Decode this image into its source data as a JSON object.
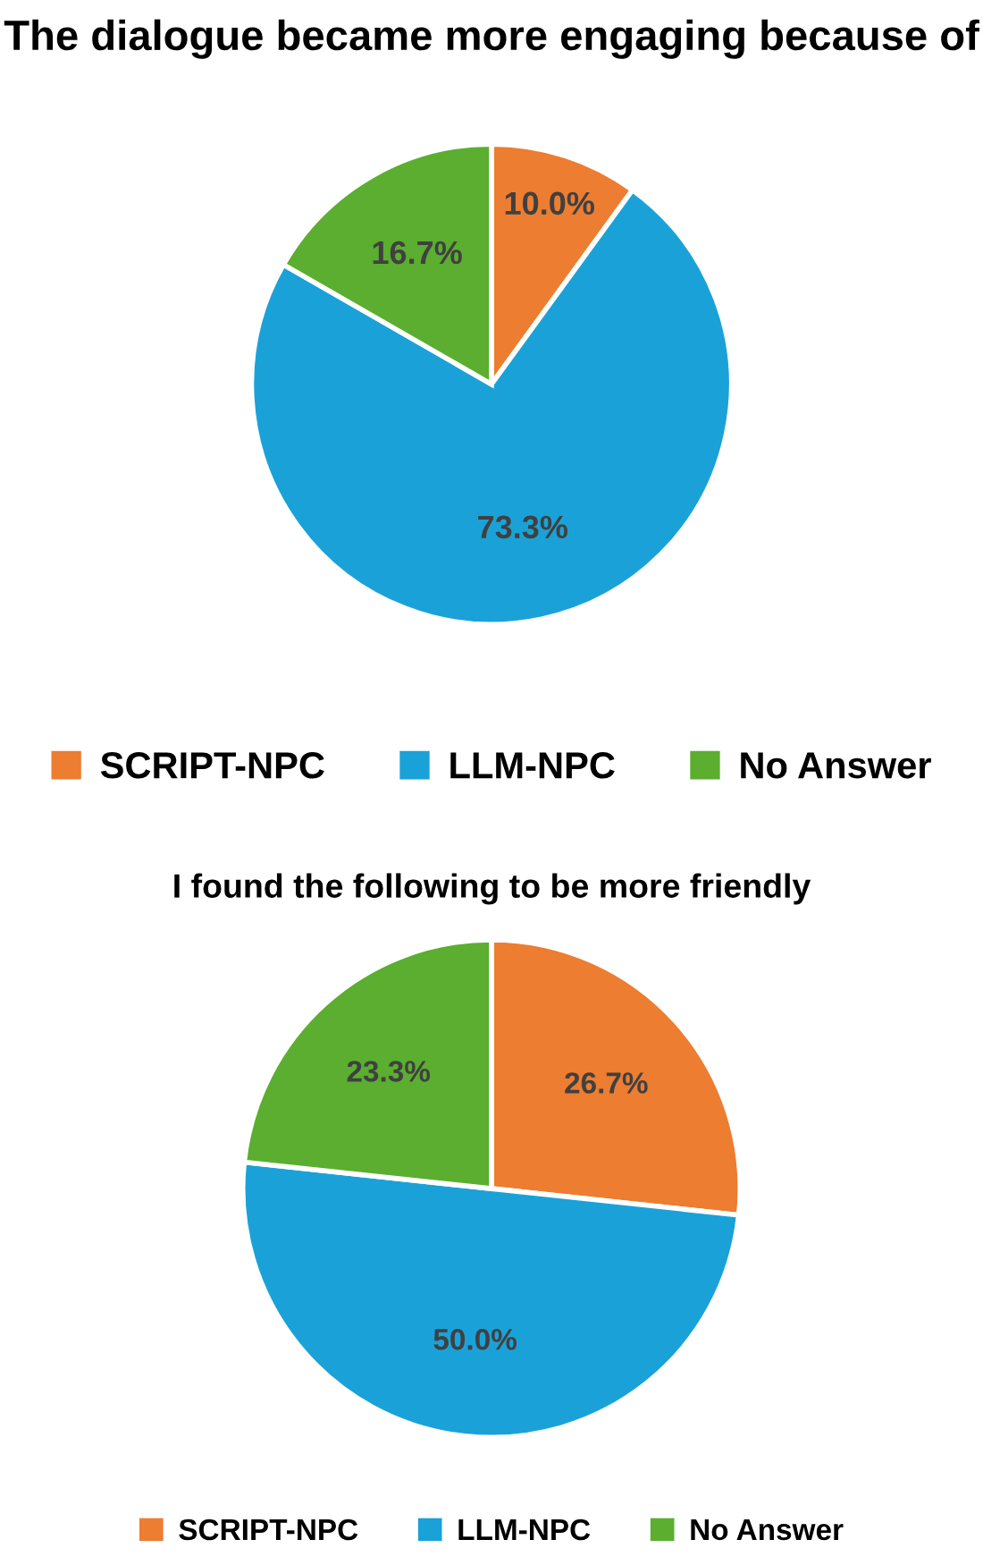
{
  "chart_data": [
    {
      "type": "pie",
      "title": "The dialogue became more engaging because of",
      "categories": [
        "SCRIPT-NPC",
        "LLM-NPC",
        "No Answer"
      ],
      "values": [
        10.0,
        73.3,
        16.7
      ],
      "colors": [
        "#ed7d31",
        "#1aa2d8",
        "#5bae2f"
      ],
      "value_labels": [
        "10.0%",
        "73.3%",
        "16.7%"
      ],
      "legend": "bottom"
    },
    {
      "type": "pie",
      "title": "I found the following to be more friendly",
      "categories": [
        "SCRIPT-NPC",
        "LLM-NPC",
        "No Answer"
      ],
      "values": [
        26.7,
        50.0,
        23.3
      ],
      "colors": [
        "#ed7d31",
        "#1aa2d8",
        "#5bae2f"
      ],
      "value_labels": [
        "26.7%",
        "50.0%",
        "23.3%"
      ],
      "legend": "bottom"
    }
  ]
}
